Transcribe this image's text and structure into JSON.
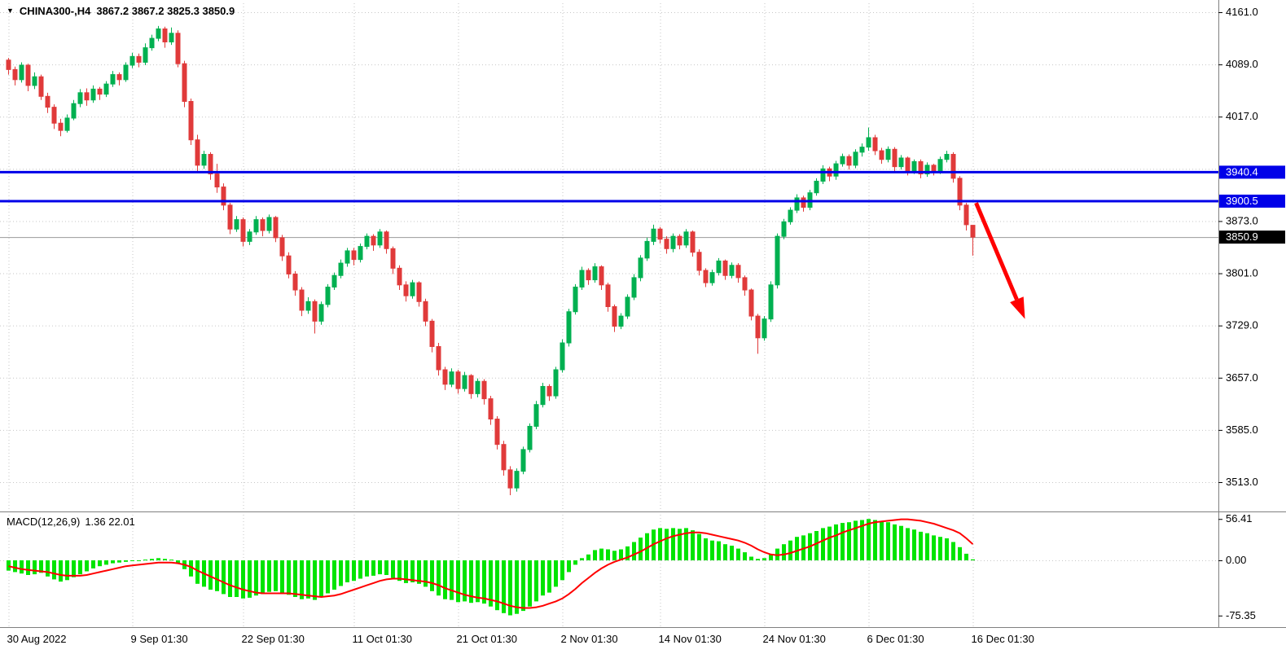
{
  "header": {
    "symbol_timeframe": "CHINA300-,H4",
    "ohlc": "3867.2 3867.2 3825.3 3850.9",
    "dropdown_icon": "triangle-down-icon"
  },
  "macd_header": {
    "name": "MACD(12,26,9)",
    "values": "1.36 22.01"
  },
  "colors": {
    "background": "#ffffff",
    "grid": "#c6c6c6",
    "candle_up": "#00b050",
    "candle_down": "#e03a3a",
    "hline_blue": "#0000e8",
    "bid_line": "#9a9a9a",
    "axis_text": "#000000",
    "separator": "#808080"
  },
  "chart_data": [
    {
      "type": "candlestick",
      "title": "CHINA300-,H4",
      "timeframe": "H4",
      "ohlc_current": {
        "open": "3867.2",
        "high": "3867.2",
        "low": "3825.3",
        "close": "3850.9"
      },
      "ylim": [
        3513,
        4161
      ],
      "grid_levels": [
        4161,
        4089,
        4017,
        3945,
        3873,
        3801,
        3729,
        3657,
        3585,
        3513
      ],
      "axis_labels": [
        "4161.0",
        "4089.0",
        "4017.0",
        "3873.0",
        "3801.0",
        "3729.0",
        "3657.0",
        "3585.0",
        "3513.0"
      ],
      "price_markers": [
        {
          "label": "3940.4",
          "value": 3940.4,
          "bg": "#0000e8",
          "fg": "#ffffff",
          "kind": "hline"
        },
        {
          "label": "3900.5",
          "value": 3900.5,
          "bg": "#0000e8",
          "fg": "#ffffff",
          "kind": "hline"
        },
        {
          "label": "3850.9",
          "value": 3850.9,
          "bg": "#000000",
          "fg": "#ffffff",
          "kind": "bid"
        }
      ],
      "current_price": 3850.9,
      "x_ticks": [
        {
          "index": 0,
          "label": "30 Aug 2022"
        },
        {
          "index": 19,
          "label": "9 Sep 01:30"
        },
        {
          "index": 36,
          "label": "22 Sep 01:30"
        },
        {
          "index": 53,
          "label": "11 Oct 01:30"
        },
        {
          "index": 69,
          "label": "21 Oct 01:30"
        },
        {
          "index": 85,
          "label": "2 Nov 01:30"
        },
        {
          "index": 100,
          "label": "14 Nov 01:30"
        },
        {
          "index": 116,
          "label": "24 Nov 01:30"
        },
        {
          "index": 132,
          "label": "6 Dec 01:30"
        },
        {
          "index": 148,
          "label": "16 Dec 01:30"
        }
      ],
      "candles": [
        [
          4095,
          4098,
          4075,
          4082
        ],
        [
          4082,
          4086,
          4060,
          4068
        ],
        [
          4068,
          4092,
          4064,
          4088
        ],
        [
          4088,
          4090,
          4052,
          4060
        ],
        [
          4060,
          4078,
          4055,
          4072
        ],
        [
          4072,
          4075,
          4040,
          4045
        ],
        [
          4045,
          4050,
          4022,
          4030
        ],
        [
          4030,
          4034,
          4000,
          4008
        ],
        [
          4008,
          4014,
          3990,
          3998
        ],
        [
          3998,
          4020,
          3995,
          4015
        ],
        [
          4015,
          4040,
          4012,
          4035
        ],
        [
          4035,
          4055,
          4030,
          4050
        ],
        [
          4050,
          4056,
          4032,
          4040
        ],
        [
          4040,
          4060,
          4036,
          4055
        ],
        [
          4055,
          4058,
          4040,
          4048
        ],
        [
          4048,
          4066,
          4044,
          4062
        ],
        [
          4062,
          4080,
          4058,
          4075
        ],
        [
          4075,
          4078,
          4060,
          4068
        ],
        [
          4068,
          4092,
          4065,
          4088
        ],
        [
          4088,
          4105,
          4084,
          4100
        ],
        [
          4100,
          4104,
          4085,
          4092
        ],
        [
          4092,
          4118,
          4088,
          4112
        ],
        [
          4112,
          4130,
          4108,
          4125
        ],
        [
          4125,
          4142,
          4121,
          4138
        ],
        [
          4138,
          4141,
          4112,
          4120
        ],
        [
          4120,
          4140,
          4116,
          4132
        ],
        [
          4132,
          4136,
          4085,
          4090
        ],
        [
          4090,
          4094,
          4030,
          4038
        ],
        [
          4038,
          4042,
          3978,
          3985
        ],
        [
          3985,
          3992,
          3942,
          3950
        ],
        [
          3950,
          3970,
          3945,
          3965
        ],
        [
          3965,
          3968,
          3930,
          3938
        ],
        [
          3938,
          3952,
          3912,
          3920
        ],
        [
          3920,
          3925,
          3888,
          3895
        ],
        [
          3895,
          3898,
          3855,
          3862
        ],
        [
          3862,
          3880,
          3858,
          3875
        ],
        [
          3875,
          3878,
          3838,
          3845
        ],
        [
          3845,
          3862,
          3840,
          3858
        ],
        [
          3858,
          3880,
          3854,
          3875
        ],
        [
          3875,
          3878,
          3852,
          3860
        ],
        [
          3860,
          3882,
          3856,
          3878
        ],
        [
          3878,
          3880,
          3844,
          3850
        ],
        [
          3850,
          3854,
          3818,
          3825
        ],
        [
          3825,
          3830,
          3794,
          3800
        ],
        [
          3800,
          3804,
          3770,
          3778
        ],
        [
          3778,
          3782,
          3742,
          3750
        ],
        [
          3750,
          3768,
          3745,
          3762
        ],
        [
          3762,
          3765,
          3718,
          3735
        ],
        [
          3735,
          3762,
          3730,
          3758
        ],
        [
          3758,
          3786,
          3754,
          3782
        ],
        [
          3782,
          3802,
          3778,
          3798
        ],
        [
          3798,
          3820,
          3794,
          3815
        ],
        [
          3815,
          3836,
          3810,
          3832
        ],
        [
          3832,
          3836,
          3812,
          3820
        ],
        [
          3820,
          3842,
          3816,
          3838
        ],
        [
          3838,
          3856,
          3834,
          3852
        ],
        [
          3852,
          3855,
          3832,
          3840
        ],
        [
          3840,
          3862,
          3836,
          3858
        ],
        [
          3858,
          3860,
          3828,
          3835
        ],
        [
          3835,
          3838,
          3800,
          3808
        ],
        [
          3808,
          3812,
          3778,
          3785
        ],
        [
          3785,
          3790,
          3762,
          3770
        ],
        [
          3770,
          3792,
          3766,
          3788
        ],
        [
          3788,
          3790,
          3755,
          3762
        ],
        [
          3762,
          3766,
          3728,
          3735
        ],
        [
          3735,
          3738,
          3692,
          3700
        ],
        [
          3700,
          3705,
          3660,
          3668
        ],
        [
          3668,
          3672,
          3640,
          3648
        ],
        [
          3648,
          3670,
          3644,
          3665
        ],
        [
          3665,
          3668,
          3635,
          3642
        ],
        [
          3642,
          3665,
          3638,
          3660
        ],
        [
          3660,
          3662,
          3628,
          3635
        ],
        [
          3635,
          3656,
          3630,
          3652
        ],
        [
          3652,
          3655,
          3620,
          3628
        ],
        [
          3628,
          3632,
          3592,
          3600
        ],
        [
          3600,
          3604,
          3558,
          3565
        ],
        [
          3565,
          3570,
          3522,
          3530
        ],
        [
          3530,
          3535,
          3495,
          3505
        ],
        [
          3505,
          3532,
          3500,
          3528
        ],
        [
          3528,
          3562,
          3524,
          3558
        ],
        [
          3558,
          3594,
          3554,
          3590
        ],
        [
          3590,
          3625,
          3586,
          3620
        ],
        [
          3620,
          3650,
          3616,
          3645
        ],
        [
          3645,
          3648,
          3625,
          3632
        ],
        [
          3632,
          3672,
          3628,
          3668
        ],
        [
          3668,
          3710,
          3664,
          3705
        ],
        [
          3705,
          3752,
          3700,
          3748
        ],
        [
          3748,
          3786,
          3744,
          3782
        ],
        [
          3782,
          3810,
          3778,
          3805
        ],
        [
          3805,
          3808,
          3785,
          3792
        ],
        [
          3792,
          3815,
          3788,
          3810
        ],
        [
          3810,
          3812,
          3778,
          3785
        ],
        [
          3785,
          3788,
          3748,
          3755
        ],
        [
          3755,
          3758,
          3720,
          3728
        ],
        [
          3728,
          3746,
          3724,
          3742
        ],
        [
          3742,
          3772,
          3738,
          3768
        ],
        [
          3768,
          3800,
          3764,
          3795
        ],
        [
          3795,
          3826,
          3790,
          3822
        ],
        [
          3822,
          3850,
          3818,
          3845
        ],
        [
          3845,
          3868,
          3840,
          3862
        ],
        [
          3862,
          3865,
          3842,
          3848
        ],
        [
          3848,
          3852,
          3828,
          3835
        ],
        [
          3835,
          3856,
          3830,
          3852
        ],
        [
          3852,
          3855,
          3834,
          3840
        ],
        [
          3840,
          3862,
          3836,
          3858
        ],
        [
          3858,
          3860,
          3824,
          3830
        ],
        [
          3830,
          3834,
          3798,
          3805
        ],
        [
          3805,
          3808,
          3782,
          3788
        ],
        [
          3788,
          3806,
          3784,
          3802
        ],
        [
          3802,
          3822,
          3798,
          3818
        ],
        [
          3818,
          3820,
          3792,
          3798
        ],
        [
          3798,
          3816,
          3794,
          3812
        ],
        [
          3812,
          3815,
          3788,
          3795
        ],
        [
          3795,
          3798,
          3770,
          3778
        ],
        [
          3778,
          3780,
          3736,
          3742
        ],
        [
          3742,
          3745,
          3690,
          3712
        ],
        [
          3712,
          3742,
          3708,
          3738
        ],
        [
          3738,
          3790,
          3734,
          3785
        ],
        [
          3785,
          3856,
          3780,
          3852
        ],
        [
          3852,
          3876,
          3848,
          3872
        ],
        [
          3872,
          3892,
          3868,
          3888
        ],
        [
          3888,
          3910,
          3884,
          3905
        ],
        [
          3905,
          3908,
          3886,
          3892
        ],
        [
          3892,
          3916,
          3888,
          3912
        ],
        [
          3912,
          3932,
          3908,
          3928
        ],
        [
          3928,
          3950,
          3924,
          3945
        ],
        [
          3945,
          3948,
          3928,
          3935
        ],
        [
          3935,
          3956,
          3930,
          3952
        ],
        [
          3952,
          3966,
          3948,
          3962
        ],
        [
          3962,
          3965,
          3944,
          3950
        ],
        [
          3950,
          3972,
          3946,
          3968
        ],
        [
          3968,
          3980,
          3962,
          3975
        ],
        [
          3975,
          4002,
          3970,
          3988
        ],
        [
          3988,
          3992,
          3964,
          3970
        ],
        [
          3970,
          3974,
          3952,
          3958
        ],
        [
          3958,
          3976,
          3954,
          3972
        ],
        [
          3972,
          3975,
          3942,
          3948
        ],
        [
          3948,
          3964,
          3944,
          3960
        ],
        [
          3960,
          3962,
          3936,
          3942
        ],
        [
          3942,
          3958,
          3938,
          3955
        ],
        [
          3955,
          3958,
          3932,
          3938
        ],
        [
          3938,
          3954,
          3934,
          3950
        ],
        [
          3950,
          3952,
          3936,
          3942
        ],
        [
          3942,
          3962,
          3938,
          3958
        ],
        [
          3958,
          3970,
          3954,
          3965
        ],
        [
          3965,
          3968,
          3926,
          3932
        ],
        [
          3932,
          3935,
          3888,
          3895
        ],
        [
          3895,
          3898,
          3860,
          3868
        ],
        [
          3867.2,
          3867.2,
          3825.3,
          3850.9
        ]
      ],
      "annotations": [
        {
          "type": "arrow",
          "color": "#ff0000",
          "from": {
            "index": 148.5,
            "price": 3898
          },
          "to": {
            "index": 156,
            "price": 3738
          }
        }
      ]
    },
    {
      "type": "macd",
      "label": "MACD(12,26,9)",
      "params": [
        12,
        26,
        9
      ],
      "values_display": "1.36 22.01",
      "y_ticks": [
        "56.41",
        "0.00",
        "-75.35"
      ],
      "ylim": [
        -75.35,
        56.41
      ],
      "colors": {
        "histogram": "#00e400",
        "signal": "#ff0000"
      },
      "histogram": [
        -14,
        -16,
        -18,
        -20,
        -19,
        -17,
        -22,
        -26,
        -29,
        -27,
        -23,
        -19,
        -15,
        -11,
        -8,
        -6,
        -4,
        -3,
        -2,
        -1,
        -1,
        1,
        2,
        3,
        2,
        1,
        -4,
        -12,
        -22,
        -32,
        -36,
        -40,
        -42,
        -46,
        -50,
        -50,
        -52,
        -51,
        -48,
        -46,
        -43,
        -42,
        -44,
        -47,
        -50,
        -53,
        -52,
        -54,
        -50,
        -45,
        -40,
        -35,
        -30,
        -28,
        -25,
        -22,
        -21,
        -19,
        -20,
        -24,
        -28,
        -31,
        -30,
        -32,
        -36,
        -42,
        -48,
        -53,
        -54,
        -57,
        -56,
        -58,
        -57,
        -59,
        -63,
        -68,
        -72,
        -75,
        -73,
        -69,
        -63,
        -56,
        -48,
        -44,
        -36,
        -27,
        -16,
        -6,
        3,
        8,
        14,
        16,
        15,
        13,
        15,
        19,
        25,
        31,
        37,
        42,
        44,
        43,
        44,
        43,
        44,
        41,
        36,
        30,
        27,
        26,
        22,
        20,
        16,
        11,
        5,
        2,
        3,
        8,
        16,
        22,
        27,
        32,
        34,
        37,
        40,
        44,
        46,
        49,
        51,
        52,
        54,
        55,
        56.4,
        55,
        53,
        52,
        49,
        47,
        44,
        42,
        39,
        37,
        34,
        32,
        30,
        25,
        18,
        9,
        1.36
      ],
      "signal": [
        -8,
        -10,
        -12,
        -13,
        -14,
        -15,
        -16,
        -18,
        -20,
        -21,
        -21,
        -21,
        -20,
        -18,
        -16,
        -14,
        -12,
        -10,
        -8,
        -7,
        -6,
        -5,
        -4,
        -3,
        -3,
        -3,
        -4,
        -6,
        -9,
        -14,
        -18,
        -22,
        -26,
        -30,
        -34,
        -37,
        -40,
        -42,
        -44,
        -45,
        -45,
        -45,
        -45,
        -45,
        -46,
        -47,
        -48,
        -49,
        -50,
        -49,
        -48,
        -46,
        -43,
        -40,
        -37,
        -34,
        -31,
        -28,
        -26,
        -25,
        -25,
        -26,
        -27,
        -28,
        -29,
        -31,
        -34,
        -38,
        -41,
        -44,
        -47,
        -49,
        -51,
        -52,
        -54,
        -56,
        -59,
        -62,
        -64,
        -65,
        -65,
        -64,
        -62,
        -59,
        -56,
        -52,
        -46,
        -39,
        -31,
        -24,
        -17,
        -11,
        -6,
        -2,
        1,
        4,
        8,
        12,
        17,
        22,
        26,
        30,
        33,
        35,
        37,
        38,
        38,
        37,
        35,
        33,
        31,
        29,
        27,
        24,
        20,
        15,
        11,
        8,
        7,
        8,
        10,
        13,
        16,
        19,
        23,
        27,
        31,
        34,
        38,
        41,
        44,
        47,
        50,
        52,
        53,
        54,
        55,
        56,
        56,
        55,
        54,
        52,
        50,
        47,
        44,
        41,
        37,
        30,
        22.01
      ]
    }
  ]
}
